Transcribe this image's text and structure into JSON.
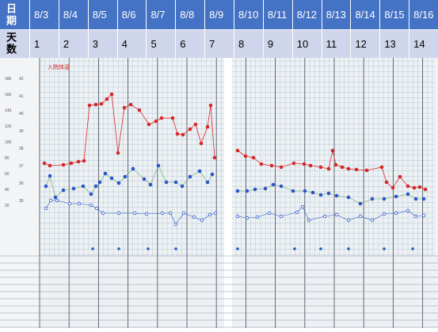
{
  "table": {
    "row1_header": "日期",
    "row2_header": "天数",
    "dates": [
      "8/3",
      "8/4",
      "8/5",
      "8/6",
      "8/7",
      "8/8",
      "8/9",
      "8/10",
      "8/11",
      "8/12",
      "8/13",
      "8/14",
      "8/15",
      "8/16"
    ],
    "days": [
      "1",
      "2",
      "3",
      "4",
      "5",
      "6",
      "7",
      "8",
      "9",
      "10",
      "11",
      "12",
      "13",
      "14"
    ]
  },
  "photo": {
    "legend_label": "入院体温",
    "left_scale_a": [
      "180",
      "160",
      "140",
      "120",
      "100",
      "80",
      "60",
      "40",
      "20"
    ],
    "left_scale_b": [
      "42",
      "41",
      "40",
      "39",
      "38",
      "37",
      "36",
      "35"
    ],
    "colors": {
      "grid": "#7aa0b8",
      "red": "#d62828",
      "blue": "#2a56c6",
      "paper": "#eef1f4"
    }
  }
}
